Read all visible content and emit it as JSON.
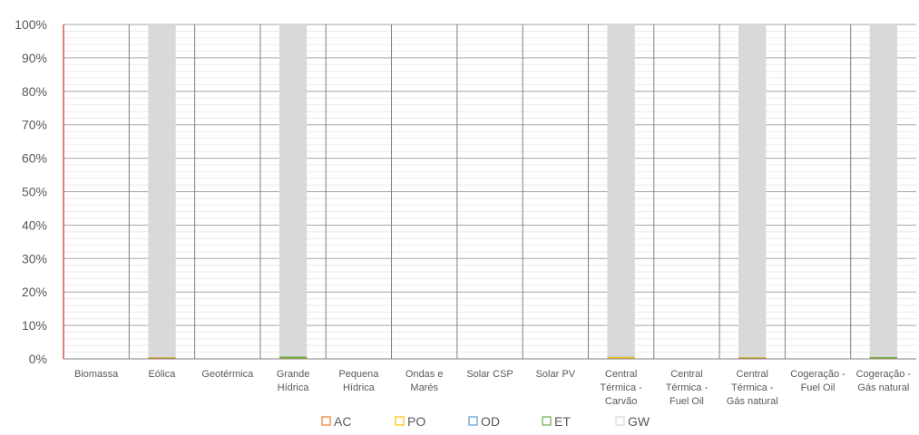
{
  "chart_data": {
    "type": "bar",
    "stacked": true,
    "normalized": true,
    "title": "",
    "xlabel": "",
    "ylabel": "",
    "ylim": [
      0,
      100
    ],
    "y_ticks": [
      "0%",
      "10%",
      "20%",
      "30%",
      "40%",
      "50%",
      "60%",
      "70%",
      "80%",
      "90%",
      "100%"
    ],
    "grid": true,
    "legend_position": "bottom",
    "categories": [
      [
        "Biomassa"
      ],
      [
        "Eólica"
      ],
      [
        "Geotérmica"
      ],
      [
        "Grande",
        "Hídrica"
      ],
      [
        "Pequena",
        "Hídrica"
      ],
      [
        "Ondas e",
        "Marés"
      ],
      [
        "Solar CSP"
      ],
      [
        "Solar PV"
      ],
      [
        "Central",
        "Térmica -",
        "Carvão"
      ],
      [
        "Central",
        "Térmica -",
        "Fuel Oil"
      ],
      [
        "Central",
        "Térmica -",
        "Gás natural"
      ],
      [
        "Cogeração -",
        "Fuel Oil"
      ],
      [
        "Cogeração -",
        "Gás natural"
      ]
    ],
    "series": [
      {
        "name": "AC",
        "color": "#ED7D31",
        "values": [
          0,
          0.3,
          0,
          0.1,
          0,
          0,
          0,
          0,
          0.2,
          0,
          0.3,
          0,
          0.1
        ]
      },
      {
        "name": "PO",
        "color": "#FFC000",
        "values": [
          0,
          0.1,
          0,
          0.1,
          0,
          0,
          0,
          0,
          0.3,
          0,
          0.1,
          0,
          0.1
        ]
      },
      {
        "name": "OD",
        "color": "#5B9BD5",
        "values": [
          0,
          0,
          0,
          0,
          0,
          0,
          0,
          0,
          0,
          0,
          0,
          0,
          0
        ]
      },
      {
        "name": "ET",
        "color": "#70AD47",
        "values": [
          0,
          0.1,
          0,
          0.5,
          0,
          0,
          0,
          0,
          0.1,
          0,
          0.1,
          0,
          0.4
        ]
      },
      {
        "name": "GW",
        "color": "#D9D9D9",
        "values": [
          0,
          99.5,
          0,
          99.3,
          0,
          0,
          0,
          0,
          99.4,
          0,
          99.5,
          0,
          99.4
        ]
      }
    ]
  }
}
